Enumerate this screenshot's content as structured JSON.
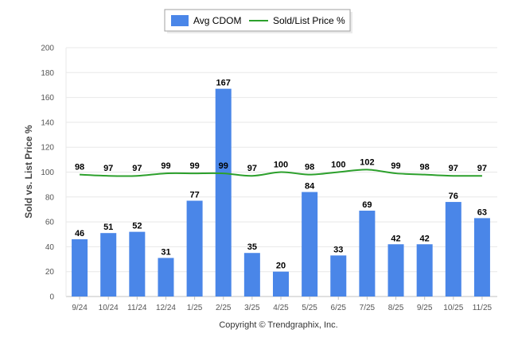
{
  "chart_data": {
    "type": "bar",
    "ylabel": "Sold vs. List Price %",
    "ylim": [
      0,
      200
    ],
    "yticks": [
      0,
      20,
      40,
      60,
      80,
      100,
      120,
      140,
      160,
      180,
      200
    ],
    "categories": [
      "9/24",
      "10/24",
      "11/24",
      "12/24",
      "1/25",
      "2/25",
      "3/25",
      "4/25",
      "5/25",
      "6/25",
      "7/25",
      "8/25",
      "9/25",
      "10/25",
      "11/25"
    ],
    "series": [
      {
        "name": "Avg CDOM",
        "kind": "bar",
        "color": "#4a86e8",
        "values": [
          46,
          51,
          52,
          31,
          77,
          167,
          35,
          20,
          84,
          33,
          69,
          42,
          42,
          76,
          63
        ]
      },
      {
        "name": "Sold/List Price %",
        "kind": "line",
        "color": "#2ca02c",
        "values": [
          98,
          97,
          97,
          99,
          99,
          99,
          97,
          100,
          98,
          100,
          102,
          99,
          98,
          97,
          97
        ]
      }
    ],
    "legend_position": "top-center",
    "copyright": "Copyright © Trendgraphix, Inc."
  }
}
